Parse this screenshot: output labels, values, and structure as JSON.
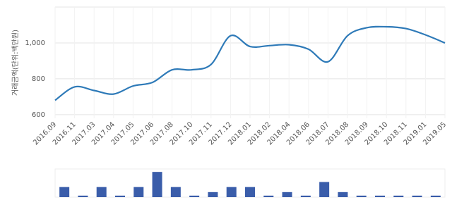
{
  "chart_data": [
    {
      "type": "line",
      "y_label": "거래금액(단위:백만원)",
      "categories": [
        "2016.09",
        "2016.11",
        "2017.03",
        "2017.04",
        "2017.05",
        "2017.06",
        "2017.08",
        "2017.10",
        "2017.11",
        "2017.12",
        "2018.01",
        "2018.02",
        "2018.04",
        "2018.06",
        "2018.07",
        "2018.08",
        "2018.09",
        "2018.10",
        "2018.11",
        "2019.01",
        "2019.05"
      ],
      "values": [
        680,
        755,
        735,
        715,
        760,
        780,
        850,
        850,
        880,
        1040,
        980,
        985,
        990,
        965,
        895,
        1040,
        1085,
        1090,
        1080,
        1045,
        1000
      ],
      "color": "#2e7ab8",
      "ylim": [
        580,
        1200
      ],
      "yticks": [
        600,
        800,
        {
          "value": 1000,
          "label": "1,000"
        }
      ],
      "grid": true
    },
    {
      "type": "bar",
      "values": [
        2,
        0.3,
        2,
        0.3,
        2,
        5,
        2,
        0.3,
        1,
        2,
        2,
        0.3,
        1,
        0.3,
        3,
        1,
        0.3,
        0.3,
        0.3,
        0.3,
        0.3
      ],
      "color": "#3a5daa",
      "ylim": [
        0,
        5.3
      ]
    }
  ]
}
